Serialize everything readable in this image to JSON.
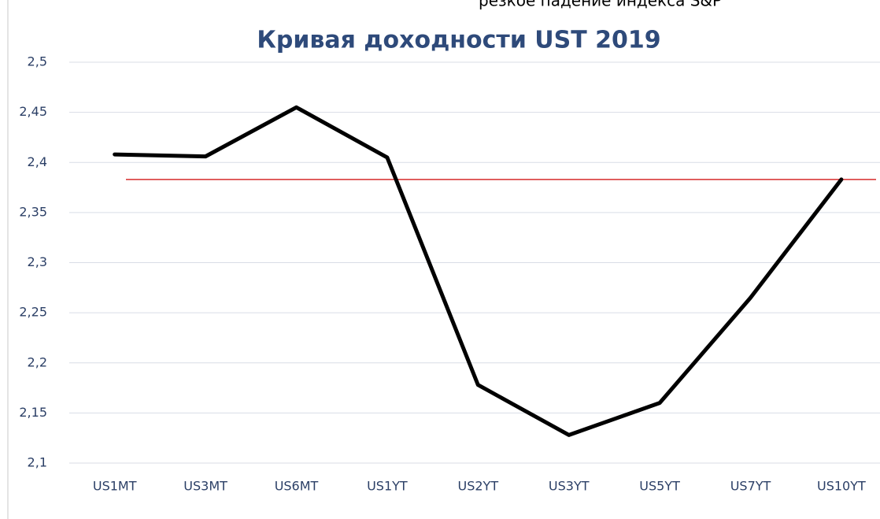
{
  "caption": "резкое падение индекса S&P",
  "chart_data": {
    "type": "line",
    "title": "Кривая доходности UST 2019",
    "categories": [
      "US1MT",
      "US3MT",
      "US6MT",
      "US1YT",
      "US2YT",
      "US3YT",
      "US5YT",
      "US7YT",
      "US10YT"
    ],
    "values": [
      2.408,
      2.406,
      2.455,
      2.405,
      2.178,
      2.128,
      2.16,
      2.265,
      2.383
    ],
    "color": "#000000",
    "reference_line": {
      "value": 2.383,
      "color": "#d62b2b"
    },
    "ylim": [
      2.1,
      2.5
    ],
    "yticks": [
      {
        "value": 2.1,
        "label": "2,1"
      },
      {
        "value": 2.15,
        "label": "2,15"
      },
      {
        "value": 2.2,
        "label": "2,2"
      },
      {
        "value": 2.25,
        "label": "2,25"
      },
      {
        "value": 2.3,
        "label": "2,3"
      },
      {
        "value": 2.35,
        "label": "2,35"
      },
      {
        "value": 2.4,
        "label": "2,4"
      },
      {
        "value": 2.45,
        "label": "2,45"
      },
      {
        "value": 2.5,
        "label": "2,5"
      }
    ],
    "grid": true
  }
}
